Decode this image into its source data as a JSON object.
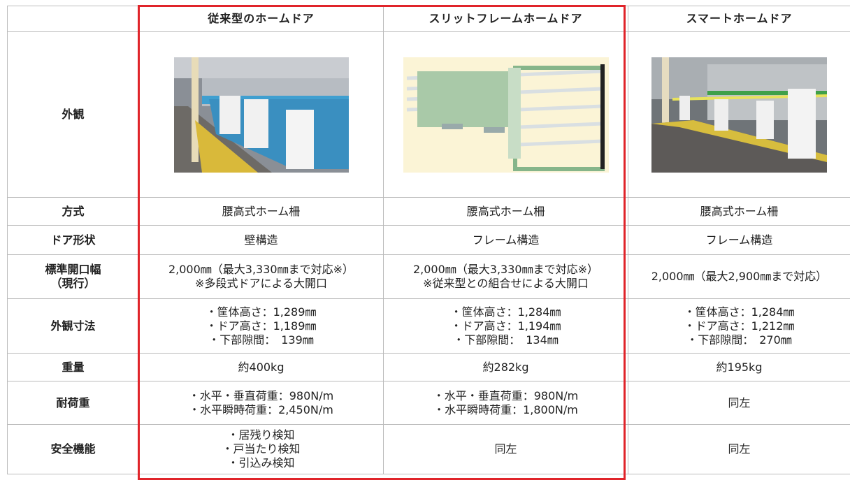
{
  "table": {
    "header": [
      "従来型のホームドア",
      "スリットフレームホームドア",
      "スマートホームドア"
    ],
    "image_row_label": "外観",
    "rows": [
      {
        "label": [
          "方式"
        ],
        "cells": [
          [
            "腰高式ホーム柵"
          ],
          [
            "腰高式ホーム柵"
          ],
          [
            "腰高式ホーム柵"
          ]
        ]
      },
      {
        "label": [
          "ドア形状"
        ],
        "cells": [
          [
            "壁構造"
          ],
          [
            "フレーム構造"
          ],
          [
            "フレーム構造"
          ]
        ]
      },
      {
        "label": [
          "標準開口幅",
          "（現行）"
        ],
        "cells": [
          [
            "2,000㎜（最大3,330㎜まで対応※）",
            "※多段式ドアによる大開口"
          ],
          [
            "2,000㎜（最大3,330㎜まで対応※）",
            "※従来型との組合せによる大開口"
          ],
          [
            "2,000㎜（最大2,900㎜まで対応）"
          ]
        ]
      },
      {
        "label": [
          "外観寸法"
        ],
        "cells": [
          [
            "・筐体高さ：1,289㎜",
            "・ドア高さ：1,189㎜",
            "・下部隙間：　139㎜"
          ],
          [
            "・筐体高さ：1,284㎜",
            "・ドア高さ：1,194㎜",
            "・下部隙間：　134㎜"
          ],
          [
            "・筐体高さ：1,284㎜",
            "・ドア高さ：1,212㎜",
            "・下部隙間：　270㎜"
          ]
        ]
      },
      {
        "label": [
          "重量"
        ],
        "cells": [
          [
            "約400kg"
          ],
          [
            "約282kg"
          ],
          [
            "約195kg"
          ]
        ]
      },
      {
        "label": [
          "耐荷重"
        ],
        "cells": [
          [
            "・水平・垂直荷重：980N/m",
            "・水平瞬時荷重：2,450N/m"
          ],
          [
            "・水平・垂直荷重：980N/m",
            "・水平瞬時荷重：1,800N/m"
          ],
          [
            "同左"
          ]
        ]
      },
      {
        "label": [
          "安全機能"
        ],
        "cells": [
          [
            "・居残り検知",
            "・戸当たり検知",
            "・引込み検知"
          ],
          [
            "同左"
          ],
          [
            "同左"
          ]
        ]
      }
    ]
  }
}
